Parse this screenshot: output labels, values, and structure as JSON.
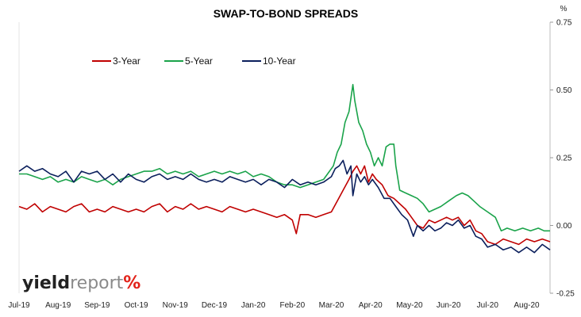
{
  "chart_data": {
    "type": "line",
    "title": "SWAP-TO-BOND SPREADS",
    "y_unit": "%",
    "ylim": [
      -0.25,
      0.75
    ],
    "y_ticks": [
      "0.75",
      "0.50",
      "0.25",
      "0.00",
      "-0.25"
    ],
    "y_tick_values": [
      0.75,
      0.5,
      0.25,
      0.0,
      -0.25
    ],
    "x_tick_labels": [
      "Jul-19",
      "Aug-19",
      "Sep-19",
      "Oct-19",
      "Nov-19",
      "Dec-19",
      "Jan-20",
      "Feb-20",
      "Mar-20",
      "Apr-20",
      "May-20",
      "Jun-20",
      "Jul-20",
      "Aug-20"
    ],
    "legend_position": "top-left",
    "grid": false,
    "x_unit": "month index from Jul-19 (0 = Jul-19, 13 = Aug-20)",
    "series": [
      {
        "name": "3-Year",
        "color": "#c00000",
        "points": [
          [
            0.0,
            0.07
          ],
          [
            0.2,
            0.06
          ],
          [
            0.4,
            0.08
          ],
          [
            0.6,
            0.05
          ],
          [
            0.8,
            0.07
          ],
          [
            1.0,
            0.06
          ],
          [
            1.2,
            0.05
          ],
          [
            1.4,
            0.07
          ],
          [
            1.6,
            0.08
          ],
          [
            1.8,
            0.05
          ],
          [
            2.0,
            0.06
          ],
          [
            2.2,
            0.05
          ],
          [
            2.4,
            0.07
          ],
          [
            2.6,
            0.06
          ],
          [
            2.8,
            0.05
          ],
          [
            3.0,
            0.06
          ],
          [
            3.2,
            0.05
          ],
          [
            3.4,
            0.07
          ],
          [
            3.6,
            0.08
          ],
          [
            3.8,
            0.05
          ],
          [
            4.0,
            0.07
          ],
          [
            4.2,
            0.06
          ],
          [
            4.4,
            0.08
          ],
          [
            4.6,
            0.06
          ],
          [
            4.8,
            0.07
          ],
          [
            5.0,
            0.06
          ],
          [
            5.2,
            0.05
          ],
          [
            5.4,
            0.07
          ],
          [
            5.6,
            0.06
          ],
          [
            5.8,
            0.05
          ],
          [
            6.0,
            0.06
          ],
          [
            6.2,
            0.05
          ],
          [
            6.4,
            0.04
          ],
          [
            6.6,
            0.03
          ],
          [
            6.8,
            0.04
          ],
          [
            7.0,
            0.02
          ],
          [
            7.1,
            -0.03
          ],
          [
            7.2,
            0.04
          ],
          [
            7.4,
            0.04
          ],
          [
            7.6,
            0.03
          ],
          [
            7.8,
            0.04
          ],
          [
            8.0,
            0.05
          ],
          [
            8.15,
            0.09
          ],
          [
            8.3,
            0.13
          ],
          [
            8.45,
            0.17
          ],
          [
            8.55,
            0.2
          ],
          [
            8.65,
            0.22
          ],
          [
            8.75,
            0.19
          ],
          [
            8.85,
            0.22
          ],
          [
            8.95,
            0.16
          ],
          [
            9.05,
            0.19
          ],
          [
            9.15,
            0.17
          ],
          [
            9.3,
            0.15
          ],
          [
            9.45,
            0.11
          ],
          [
            9.6,
            0.1
          ],
          [
            9.75,
            0.08
          ],
          [
            9.9,
            0.06
          ],
          [
            10.05,
            0.03
          ],
          [
            10.2,
            0.0
          ],
          [
            10.35,
            -0.01
          ],
          [
            10.5,
            0.02
          ],
          [
            10.65,
            0.01
          ],
          [
            10.8,
            0.02
          ],
          [
            10.95,
            0.03
          ],
          [
            11.1,
            0.02
          ],
          [
            11.25,
            0.03
          ],
          [
            11.4,
            0.0
          ],
          [
            11.55,
            0.02
          ],
          [
            11.7,
            -0.02
          ],
          [
            11.85,
            -0.03
          ],
          [
            12.0,
            -0.06
          ],
          [
            12.2,
            -0.07
          ],
          [
            12.4,
            -0.05
          ],
          [
            12.6,
            -0.06
          ],
          [
            12.8,
            -0.07
          ],
          [
            13.0,
            -0.05
          ],
          [
            13.2,
            -0.06
          ],
          [
            13.4,
            -0.05
          ],
          [
            13.6,
            -0.06
          ]
        ]
      },
      {
        "name": "5-Year",
        "color": "#1aa34a",
        "points": [
          [
            0.0,
            0.19
          ],
          [
            0.2,
            0.19
          ],
          [
            0.4,
            0.18
          ],
          [
            0.6,
            0.17
          ],
          [
            0.8,
            0.18
          ],
          [
            1.0,
            0.16
          ],
          [
            1.2,
            0.17
          ],
          [
            1.4,
            0.16
          ],
          [
            1.6,
            0.18
          ],
          [
            1.8,
            0.17
          ],
          [
            2.0,
            0.16
          ],
          [
            2.2,
            0.17
          ],
          [
            2.4,
            0.15
          ],
          [
            2.6,
            0.17
          ],
          [
            2.8,
            0.18
          ],
          [
            3.0,
            0.19
          ],
          [
            3.2,
            0.2
          ],
          [
            3.4,
            0.2
          ],
          [
            3.6,
            0.21
          ],
          [
            3.8,
            0.19
          ],
          [
            4.0,
            0.2
          ],
          [
            4.2,
            0.19
          ],
          [
            4.4,
            0.2
          ],
          [
            4.6,
            0.18
          ],
          [
            4.8,
            0.19
          ],
          [
            5.0,
            0.2
          ],
          [
            5.2,
            0.19
          ],
          [
            5.4,
            0.2
          ],
          [
            5.6,
            0.19
          ],
          [
            5.8,
            0.2
          ],
          [
            6.0,
            0.18
          ],
          [
            6.2,
            0.19
          ],
          [
            6.4,
            0.18
          ],
          [
            6.6,
            0.16
          ],
          [
            6.8,
            0.15
          ],
          [
            7.0,
            0.15
          ],
          [
            7.2,
            0.14
          ],
          [
            7.4,
            0.15
          ],
          [
            7.6,
            0.16
          ],
          [
            7.8,
            0.17
          ],
          [
            7.95,
            0.2
          ],
          [
            8.05,
            0.22
          ],
          [
            8.15,
            0.27
          ],
          [
            8.25,
            0.3
          ],
          [
            8.35,
            0.38
          ],
          [
            8.45,
            0.42
          ],
          [
            8.55,
            0.52
          ],
          [
            8.6,
            0.46
          ],
          [
            8.7,
            0.38
          ],
          [
            8.8,
            0.35
          ],
          [
            8.9,
            0.3
          ],
          [
            9.0,
            0.27
          ],
          [
            9.1,
            0.22
          ],
          [
            9.2,
            0.25
          ],
          [
            9.3,
            0.22
          ],
          [
            9.4,
            0.29
          ],
          [
            9.5,
            0.3
          ],
          [
            9.6,
            0.3
          ],
          [
            9.65,
            0.22
          ],
          [
            9.75,
            0.13
          ],
          [
            9.9,
            0.12
          ],
          [
            10.05,
            0.11
          ],
          [
            10.2,
            0.1
          ],
          [
            10.35,
            0.08
          ],
          [
            10.5,
            0.05
          ],
          [
            10.65,
            0.06
          ],
          [
            10.8,
            0.07
          ],
          [
            11.0,
            0.09
          ],
          [
            11.2,
            0.11
          ],
          [
            11.35,
            0.12
          ],
          [
            11.5,
            0.11
          ],
          [
            11.65,
            0.09
          ],
          [
            11.8,
            0.07
          ],
          [
            12.0,
            0.05
          ],
          [
            12.2,
            0.03
          ],
          [
            12.35,
            -0.02
          ],
          [
            12.5,
            -0.01
          ],
          [
            12.7,
            -0.02
          ],
          [
            12.9,
            -0.01
          ],
          [
            13.1,
            -0.02
          ],
          [
            13.3,
            -0.01
          ],
          [
            13.45,
            -0.02
          ],
          [
            13.6,
            -0.02
          ]
        ]
      },
      {
        "name": "10-Year",
        "color": "#0b1f5c",
        "points": [
          [
            0.0,
            0.2
          ],
          [
            0.2,
            0.22
          ],
          [
            0.4,
            0.2
          ],
          [
            0.6,
            0.21
          ],
          [
            0.8,
            0.19
          ],
          [
            1.0,
            0.18
          ],
          [
            1.2,
            0.2
          ],
          [
            1.4,
            0.16
          ],
          [
            1.6,
            0.2
          ],
          [
            1.8,
            0.19
          ],
          [
            2.0,
            0.2
          ],
          [
            2.2,
            0.17
          ],
          [
            2.4,
            0.19
          ],
          [
            2.6,
            0.16
          ],
          [
            2.8,
            0.19
          ],
          [
            3.0,
            0.17
          ],
          [
            3.2,
            0.16
          ],
          [
            3.4,
            0.18
          ],
          [
            3.6,
            0.19
          ],
          [
            3.8,
            0.17
          ],
          [
            4.0,
            0.18
          ],
          [
            4.2,
            0.17
          ],
          [
            4.4,
            0.19
          ],
          [
            4.6,
            0.17
          ],
          [
            4.8,
            0.16
          ],
          [
            5.0,
            0.17
          ],
          [
            5.2,
            0.16
          ],
          [
            5.4,
            0.18
          ],
          [
            5.6,
            0.17
          ],
          [
            5.8,
            0.16
          ],
          [
            6.0,
            0.17
          ],
          [
            6.2,
            0.15
          ],
          [
            6.4,
            0.17
          ],
          [
            6.6,
            0.16
          ],
          [
            6.8,
            0.14
          ],
          [
            7.0,
            0.17
          ],
          [
            7.2,
            0.15
          ],
          [
            7.4,
            0.16
          ],
          [
            7.6,
            0.15
          ],
          [
            7.8,
            0.16
          ],
          [
            8.0,
            0.18
          ],
          [
            8.1,
            0.21
          ],
          [
            8.2,
            0.22
          ],
          [
            8.3,
            0.24
          ],
          [
            8.4,
            0.19
          ],
          [
            8.5,
            0.22
          ],
          [
            8.55,
            0.11
          ],
          [
            8.65,
            0.19
          ],
          [
            8.75,
            0.16
          ],
          [
            8.85,
            0.18
          ],
          [
            8.95,
            0.15
          ],
          [
            9.05,
            0.17
          ],
          [
            9.2,
            0.14
          ],
          [
            9.35,
            0.1
          ],
          [
            9.5,
            0.1
          ],
          [
            9.65,
            0.07
          ],
          [
            9.8,
            0.04
          ],
          [
            9.95,
            0.02
          ],
          [
            10.1,
            -0.04
          ],
          [
            10.2,
            0.0
          ],
          [
            10.35,
            -0.02
          ],
          [
            10.5,
            0.0
          ],
          [
            10.65,
            -0.02
          ],
          [
            10.8,
            -0.01
          ],
          [
            10.95,
            0.01
          ],
          [
            11.1,
            0.0
          ],
          [
            11.25,
            0.02
          ],
          [
            11.4,
            -0.01
          ],
          [
            11.55,
            0.0
          ],
          [
            11.7,
            -0.04
          ],
          [
            11.85,
            -0.05
          ],
          [
            12.0,
            -0.08
          ],
          [
            12.2,
            -0.07
          ],
          [
            12.4,
            -0.09
          ],
          [
            12.6,
            -0.08
          ],
          [
            12.8,
            -0.1
          ],
          [
            13.0,
            -0.08
          ],
          [
            13.2,
            -0.1
          ],
          [
            13.4,
            -0.07
          ],
          [
            13.6,
            -0.09
          ]
        ]
      }
    ]
  },
  "logo": {
    "part1": "yield",
    "part2": "report",
    "part3": "%"
  }
}
